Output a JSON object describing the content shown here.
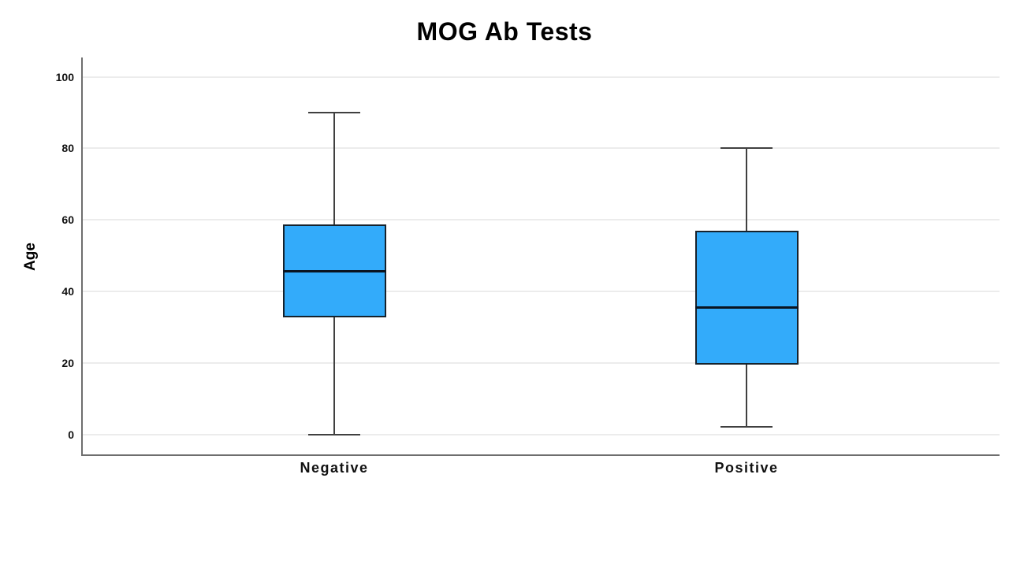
{
  "chart_data": {
    "type": "box",
    "title": "MOG Ab Tests",
    "ylabel": "Age",
    "xlabel": "",
    "categories": [
      "Negative",
      "Positive"
    ],
    "yticks": [
      0,
      20,
      40,
      60,
      80,
      100
    ],
    "ylim": [
      -5.6,
      105.4
    ],
    "grid": "horizontal-light",
    "legend": "none",
    "series": [
      {
        "name": "Negative",
        "min": 0,
        "q1": 32.7,
        "median": 45.5,
        "q3": 58.7,
        "max": 90
      },
      {
        "name": "Positive",
        "min": 2.1,
        "q1": 19.5,
        "median": 35.4,
        "q3": 56.9,
        "max": 80
      }
    ],
    "colors": {
      "box_fill": "#33abfa",
      "box_border": "#16222c",
      "median_line": "#0a1420",
      "whisker": "#404040",
      "axis": "#6e6e6e",
      "gridline": "#ececec",
      "text": "#000000"
    }
  }
}
